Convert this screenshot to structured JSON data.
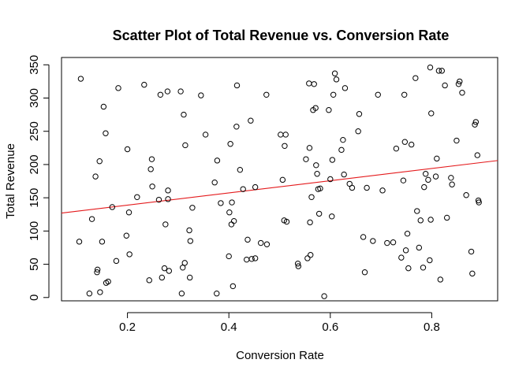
{
  "chart_data": {
    "type": "scatter",
    "title": "Scatter Plot of Total Revenue vs. Conversion Rate",
    "xlabel": "Conversion Rate",
    "ylabel": "Total Revenue",
    "xlim": [
      0.07,
      0.93
    ],
    "ylim": [
      -5,
      361
    ],
    "x_ticks": [
      0.2,
      0.4,
      0.6,
      0.8
    ],
    "x_tick_labels": [
      "0.2",
      "0.4",
      "0.6",
      "0.8"
    ],
    "y_ticks": [
      0,
      50,
      100,
      150,
      200,
      250,
      300,
      350
    ],
    "y_tick_labels": [
      "0",
      "50",
      "100",
      "150",
      "200",
      "250",
      "300",
      "350"
    ],
    "grid": false,
    "fit_line": {
      "x": [
        0.07,
        0.93
      ],
      "y": [
        127,
        206
      ],
      "color": "#e41a1c"
    },
    "points": [
      [
        0.105,
        84
      ],
      [
        0.108,
        329
      ],
      [
        0.125,
        6
      ],
      [
        0.13,
        118
      ],
      [
        0.137,
        182
      ],
      [
        0.14,
        38
      ],
      [
        0.141,
        42
      ],
      [
        0.145,
        205
      ],
      [
        0.146,
        8
      ],
      [
        0.15,
        84
      ],
      [
        0.153,
        287
      ],
      [
        0.157,
        247
      ],
      [
        0.158,
        22
      ],
      [
        0.162,
        24
      ],
      [
        0.17,
        136
      ],
      [
        0.178,
        55
      ],
      [
        0.182,
        315
      ],
      [
        0.198,
        93
      ],
      [
        0.2,
        223
      ],
      [
        0.203,
        128
      ],
      [
        0.204,
        65
      ],
      [
        0.219,
        151
      ],
      [
        0.233,
        320
      ],
      [
        0.243,
        26
      ],
      [
        0.246,
        193
      ],
      [
        0.248,
        208
      ],
      [
        0.249,
        167
      ],
      [
        0.262,
        147
      ],
      [
        0.265,
        305
      ],
      [
        0.268,
        30
      ],
      [
        0.273,
        44
      ],
      [
        0.275,
        110
      ],
      [
        0.279,
        310
      ],
      [
        0.28,
        148
      ],
      [
        0.28,
        161
      ],
      [
        0.282,
        40
      ],
      [
        0.305,
        310
      ],
      [
        0.307,
        6
      ],
      [
        0.309,
        45
      ],
      [
        0.311,
        275
      ],
      [
        0.313,
        52
      ],
      [
        0.314,
        229
      ],
      [
        0.322,
        101
      ],
      [
        0.323,
        30
      ],
      [
        0.324,
        85
      ],
      [
        0.328,
        135
      ],
      [
        0.345,
        304
      ],
      [
        0.354,
        245
      ],
      [
        0.372,
        173
      ],
      [
        0.376,
        6
      ],
      [
        0.377,
        206
      ],
      [
        0.384,
        142
      ],
      [
        0.4,
        62
      ],
      [
        0.401,
        128
      ],
      [
        0.403,
        231
      ],
      [
        0.405,
        110
      ],
      [
        0.406,
        143
      ],
      [
        0.408,
        17
      ],
      [
        0.41,
        115
      ],
      [
        0.415,
        257
      ],
      [
        0.416,
        319
      ],
      [
        0.422,
        192
      ],
      [
        0.428,
        163
      ],
      [
        0.435,
        57
      ],
      [
        0.437,
        87
      ],
      [
        0.443,
        266
      ],
      [
        0.445,
        58
      ],
      [
        0.452,
        166
      ],
      [
        0.452,
        59
      ],
      [
        0.463,
        82
      ],
      [
        0.474,
        305
      ],
      [
        0.475,
        80
      ],
      [
        0.502,
        245
      ],
      [
        0.506,
        177
      ],
      [
        0.509,
        116
      ],
      [
        0.51,
        228
      ],
      [
        0.512,
        245
      ],
      [
        0.514,
        114
      ],
      [
        0.536,
        51
      ],
      [
        0.537,
        47
      ],
      [
        0.552,
        208
      ],
      [
        0.555,
        59
      ],
      [
        0.558,
        322
      ],
      [
        0.559,
        225
      ],
      [
        0.56,
        113
      ],
      [
        0.561,
        64
      ],
      [
        0.563,
        151
      ],
      [
        0.566,
        282
      ],
      [
        0.568,
        321
      ],
      [
        0.571,
        285
      ],
      [
        0.572,
        199
      ],
      [
        0.574,
        186
      ],
      [
        0.576,
        163
      ],
      [
        0.578,
        126
      ],
      [
        0.58,
        164
      ],
      [
        0.588,
        2
      ],
      [
        0.597,
        282
      ],
      [
        0.6,
        178
      ],
      [
        0.603,
        122
      ],
      [
        0.604,
        207
      ],
      [
        0.606,
        305
      ],
      [
        0.609,
        337
      ],
      [
        0.612,
        328
      ],
      [
        0.622,
        222
      ],
      [
        0.625,
        237
      ],
      [
        0.627,
        185
      ],
      [
        0.629,
        315
      ],
      [
        0.638,
        171
      ],
      [
        0.643,
        165
      ],
      [
        0.655,
        250
      ],
      [
        0.657,
        276
      ],
      [
        0.665,
        91
      ],
      [
        0.668,
        38
      ],
      [
        0.672,
        165
      ],
      [
        0.684,
        85
      ],
      [
        0.694,
        305
      ],
      [
        0.703,
        161
      ],
      [
        0.712,
        82
      ],
      [
        0.724,
        83
      ],
      [
        0.73,
        224
      ],
      [
        0.74,
        60
      ],
      [
        0.744,
        176
      ],
      [
        0.746,
        305
      ],
      [
        0.747,
        234
      ],
      [
        0.749,
        71
      ],
      [
        0.752,
        96
      ],
      [
        0.754,
        44
      ],
      [
        0.76,
        230
      ],
      [
        0.768,
        330
      ],
      [
        0.771,
        130
      ],
      [
        0.775,
        75
      ],
      [
        0.778,
        116
      ],
      [
        0.783,
        45
      ],
      [
        0.785,
        166
      ],
      [
        0.788,
        186
      ],
      [
        0.793,
        177
      ],
      [
        0.796,
        56
      ],
      [
        0.797,
        346
      ],
      [
        0.798,
        117
      ],
      [
        0.799,
        277
      ],
      [
        0.808,
        182
      ],
      [
        0.81,
        209
      ],
      [
        0.814,
        341
      ],
      [
        0.817,
        27
      ],
      [
        0.82,
        341
      ],
      [
        0.826,
        319
      ],
      [
        0.83,
        120
      ],
      [
        0.838,
        180
      ],
      [
        0.84,
        170
      ],
      [
        0.849,
        236
      ],
      [
        0.853,
        321
      ],
      [
        0.855,
        325
      ],
      [
        0.86,
        308
      ],
      [
        0.868,
        154
      ],
      [
        0.878,
        69
      ],
      [
        0.88,
        36
      ],
      [
        0.885,
        260
      ],
      [
        0.887,
        264
      ],
      [
        0.89,
        214
      ],
      [
        0.892,
        146
      ],
      [
        0.893,
        143
      ]
    ]
  }
}
